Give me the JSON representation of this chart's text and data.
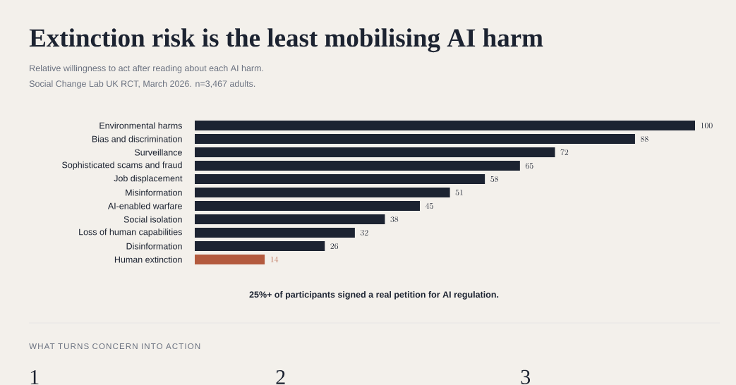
{
  "chart_data": {
    "type": "bar",
    "orientation": "horizontal",
    "title": "Extinction risk is the least mobilising AI harm",
    "subtitle": "Relative willingness to act after reading about each AI harm.",
    "categories": [
      "Environmental harms",
      "Bias and discrimination",
      "Surveillance",
      "Sophisticated scams and fraud",
      "Job displacement",
      "Misinformation",
      "AI-enabled warfare",
      "Social isolation",
      "Loss of human capabilities",
      "Disinformation",
      "Human extinction"
    ],
    "values": [
      100,
      88,
      72,
      65,
      58,
      51,
      45,
      38,
      32,
      26,
      14
    ],
    "colors": [
      "#1c2331",
      "#1c2331",
      "#1c2331",
      "#1c2331",
      "#1c2331",
      "#1c2331",
      "#1c2331",
      "#1c2331",
      "#1c2331",
      "#1c2331",
      "#b35a3e"
    ],
    "xlim": [
      0,
      100
    ],
    "data_labels": true,
    "tick_labels": "y",
    "annotations": [
      "Social Change Lab UK RCT, March 2026. n=3,467 adults.",
      "25%+ of participants signed a real petition for AI regulation.",
      "WHAT TURNS CONCERN INTO ACTION",
      "1",
      "2",
      "3"
    ]
  }
}
